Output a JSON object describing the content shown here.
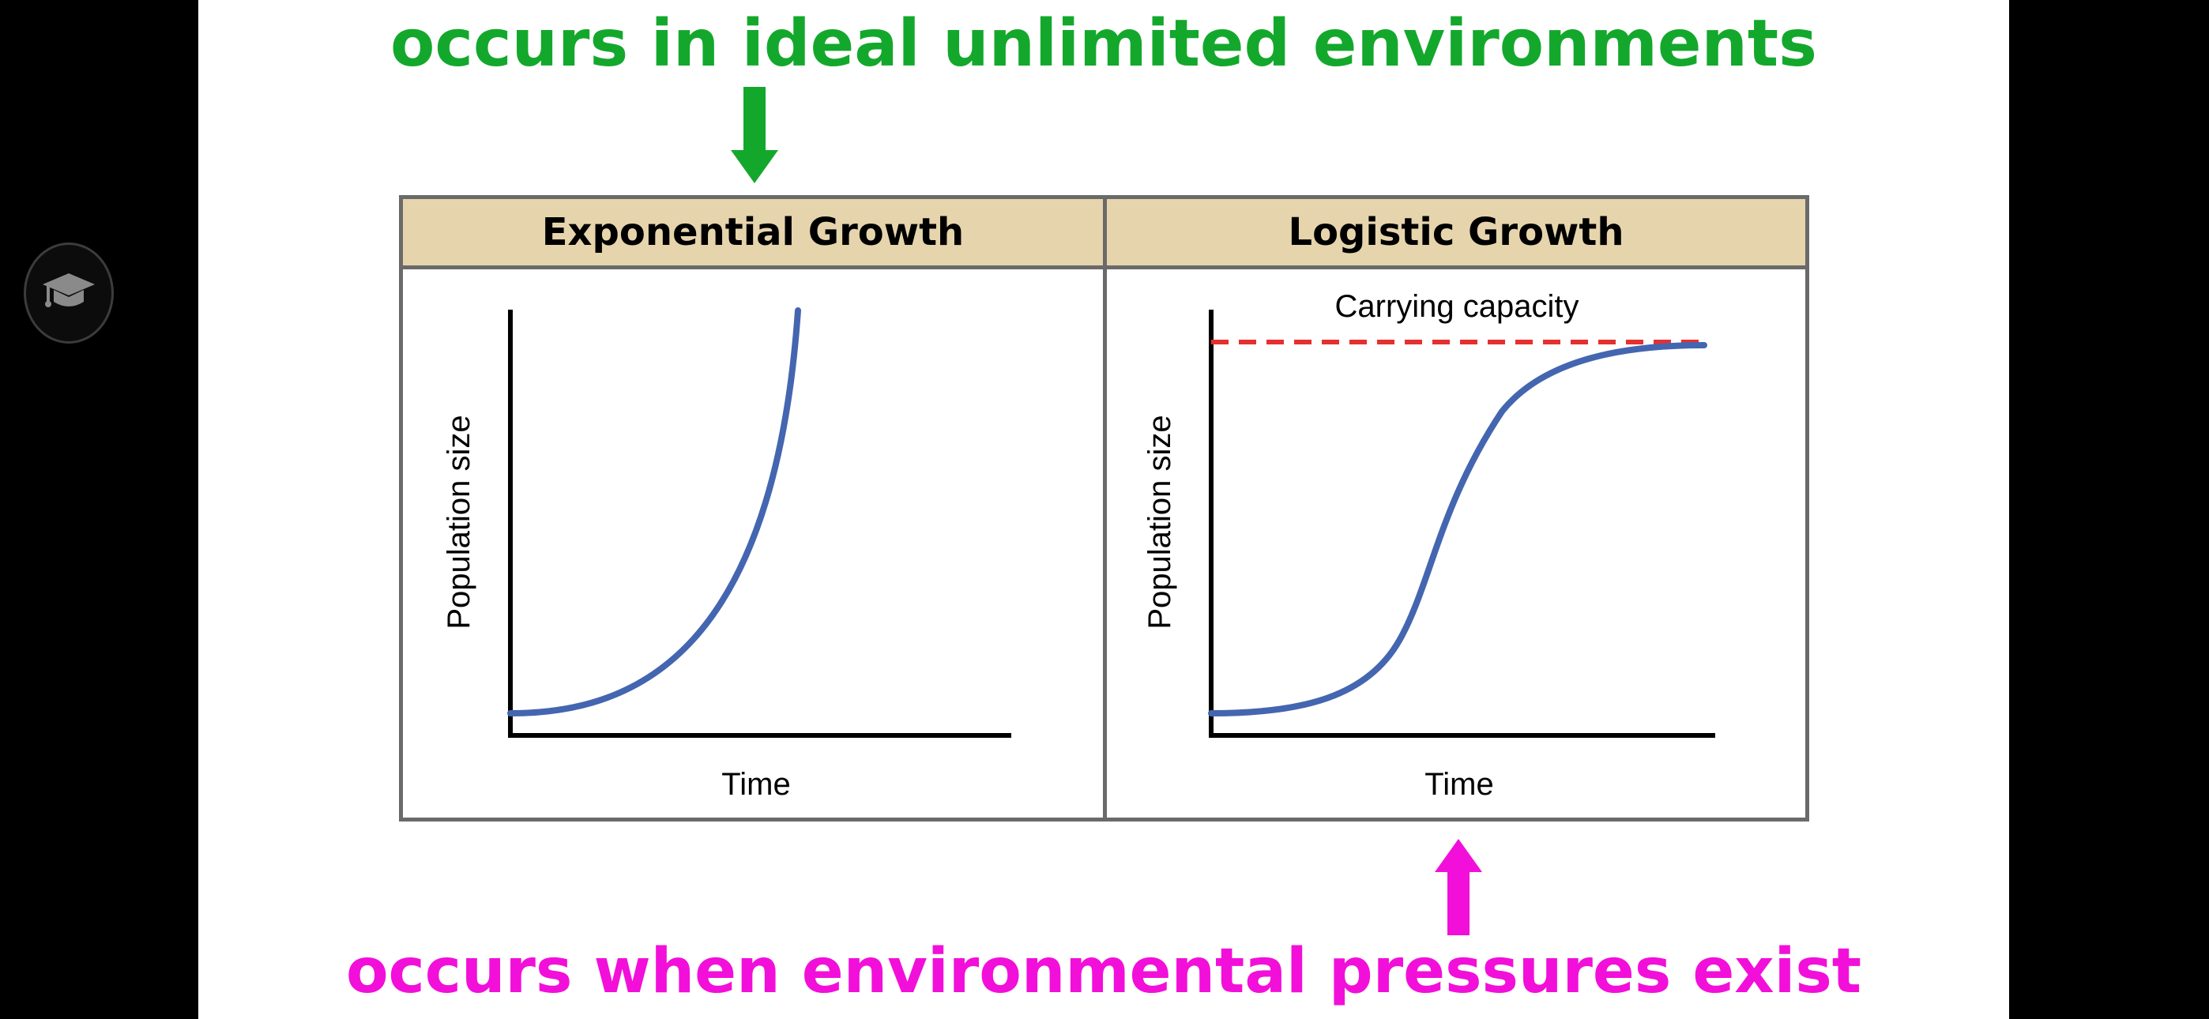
{
  "top_caption": "occurs in ideal unlimited environments",
  "bottom_caption": "occurs when environmental pressures exist",
  "side_button_icon": "graduation-cap-icon",
  "colors": {
    "top_caption": "#13a82c",
    "bottom_caption": "#f20fd9",
    "header_fill": "#e6d5ac",
    "curve": "#4466b0",
    "carrying_capacity_line": "#e53030"
  },
  "panels": [
    {
      "title": "Exponential Growth",
      "ylabel": "Population size",
      "xlabel": "Time",
      "curve": "exponential"
    },
    {
      "title": "Logistic Growth",
      "ylabel": "Population size",
      "xlabel": "Time",
      "curve": "logistic",
      "annotation": "Carrying capacity"
    }
  ]
}
